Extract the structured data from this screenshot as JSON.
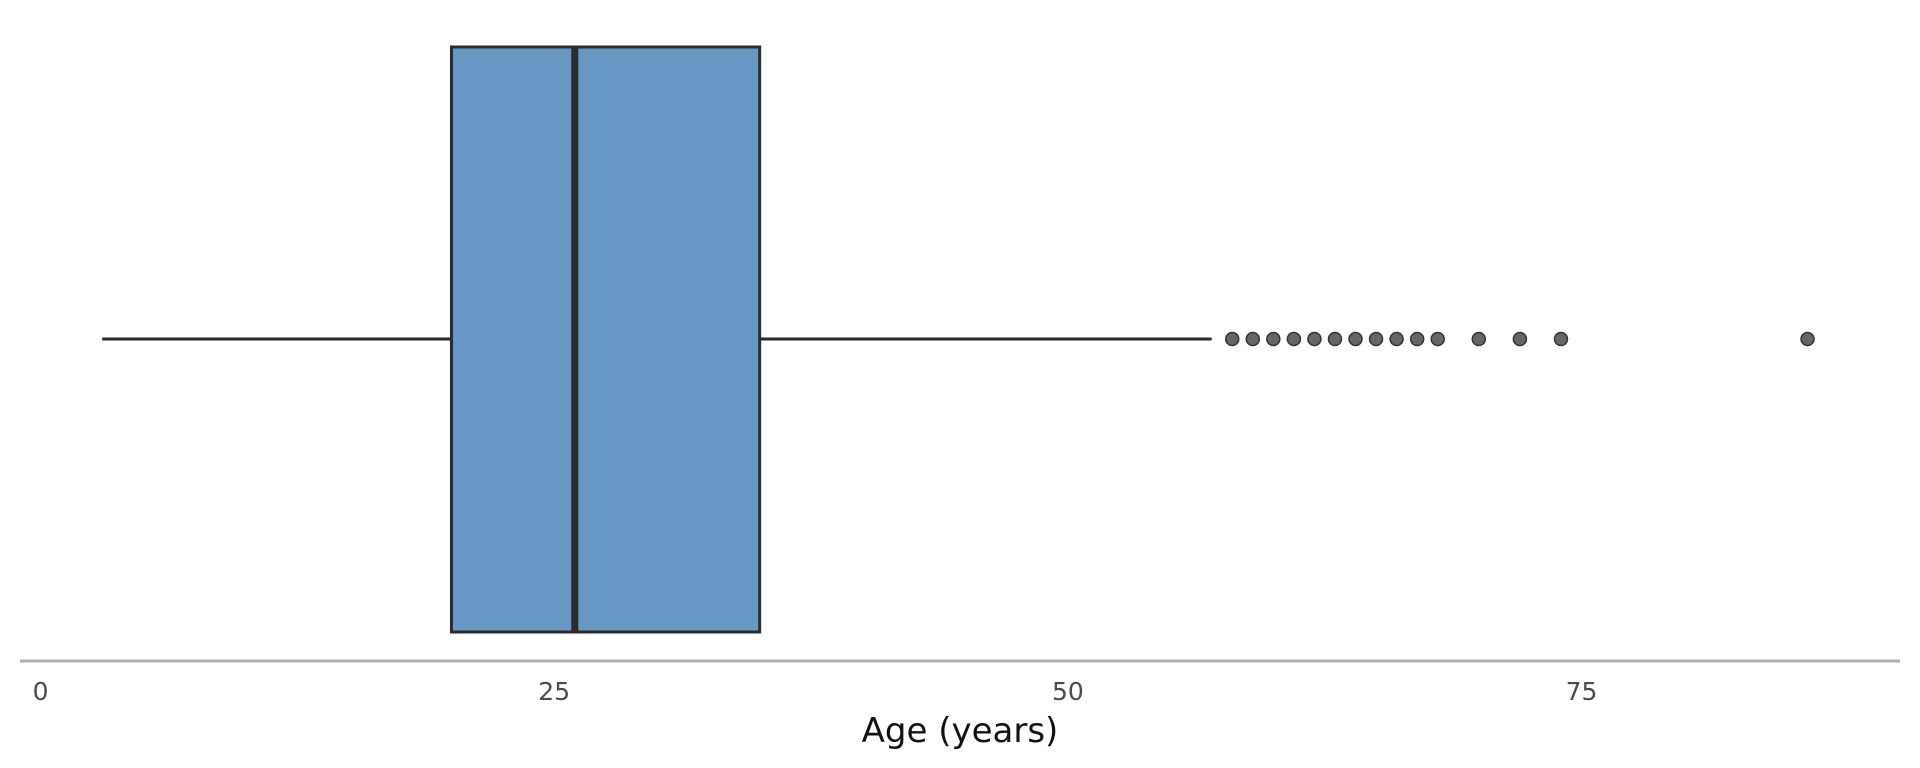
{
  "chart_data": {
    "type": "box",
    "orientation": "horizontal",
    "xlabel": "Age (years)",
    "xlim": [
      -1,
      90.5
    ],
    "xticks": [
      0,
      25,
      50,
      75
    ],
    "xtick_labels": [
      "0",
      "25",
      "50",
      "75"
    ],
    "grid": false,
    "legend": "none",
    "box": {
      "whisker_low": 3,
      "q1": 20,
      "median": 26,
      "q3": 35,
      "whisker_high": 57
    },
    "outliers": [
      58,
      59,
      60,
      61,
      62,
      63,
      64,
      65,
      66,
      67,
      68,
      70,
      72,
      74,
      86
    ],
    "colors": {
      "box_fill": "#6798c4",
      "box_edge": "#2b2b2b",
      "median_line": "#2b2b2b",
      "outlier_fill": "#333333",
      "axis_line": "#b0b0b0"
    }
  }
}
